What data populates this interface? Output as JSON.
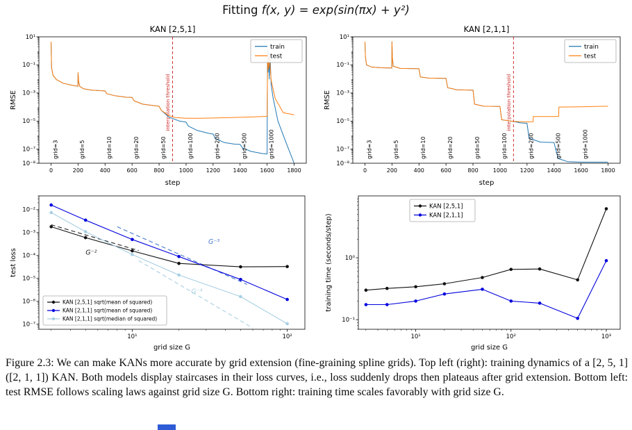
{
  "figure": {
    "title_prefix": "Fitting ",
    "title_math": "f(x, y) = exp(sin(πx) + y²)",
    "caption": "Figure 2.3: We can make KANs more accurate by grid extension (fine-graining spline grids). Top left (right): training dynamics of a [2, 5, 1] ([2, 1, 1]) KAN. Both models display staircases in their loss curves, i.e., loss suddenly drops then plateaus after grid extension. Bottom left: test RMSE follows scaling laws against grid size G. Bottom right: training time scales favorably with grid size G."
  },
  "artifact": {
    "color": "#2e5cd6"
  },
  "chart_data": [
    {
      "svg": "chart-top-left",
      "type": "line",
      "title": "KAN [2,5,1]",
      "xlabel": "step",
      "ylabel": "RMSE",
      "x_scale": "linear",
      "xlim": [
        -90,
        1890
      ],
      "ylim": [
        1e-08,
        10
      ],
      "xticks": [
        0,
        200,
        400,
        600,
        800,
        1000,
        1200,
        1400,
        1600,
        1800
      ],
      "ytick_exps": [
        1,
        -1,
        -3,
        -5,
        -7,
        -8
      ],
      "vline": {
        "x": 900,
        "label": "interpolation threshold",
        "color": "#cc2f2f"
      },
      "grid_labels": [
        {
          "x": 30,
          "label": "grid=3"
        },
        {
          "x": 230,
          "label": "grid=5"
        },
        {
          "x": 430,
          "label": "grid=10"
        },
        {
          "x": 630,
          "label": "grid=20"
        },
        {
          "x": 830,
          "label": "grid=50"
        },
        {
          "x": 1030,
          "label": "grid=100"
        },
        {
          "x": 1230,
          "label": "grid=200"
        },
        {
          "x": 1430,
          "label": "grid=500"
        },
        {
          "x": 1630,
          "label": "grid=1000"
        }
      ],
      "legend": {
        "x_off": -80,
        "y_off": 4,
        "w": 74,
        "font": 9,
        "entries": [
          {
            "label": "train",
            "color": "#1f77b4"
          },
          {
            "label": "test",
            "color": "#ff7f0e"
          }
        ]
      },
      "series": [
        {
          "name": "train",
          "color": "#1f77b4",
          "x": [
            0,
            4,
            15,
            40,
            90,
            160,
            199,
            200,
            204,
            212,
            240,
            300,
            399,
            400,
            412,
            470,
            560,
            599,
            600,
            615,
            680,
            780,
            799,
            800,
            815,
            870,
            950,
            999,
            1000,
            1015,
            1080,
            1160,
            1199,
            1200,
            1215,
            1280,
            1360,
            1399,
            1400,
            1420,
            1480,
            1560,
            1599,
            1600,
            1603,
            1607,
            1611,
            1616,
            1622,
            1630,
            1645,
            1680,
            1740,
            1800
          ],
          "y": [
            4.5,
            0.06,
            0.018,
            0.009,
            0.005,
            0.0035,
            0.003,
            0.028,
            0.007,
            0.003,
            0.002,
            0.0016,
            0.0014,
            0.0014,
            0.0009,
            0.00065,
            0.0005,
            0.00048,
            0.00048,
            0.00028,
            0.00016,
            0.00012,
            0.000115,
            0.000115,
            6e-05,
            2e-05,
            1e-05,
            8.5e-06,
            8.5e-06,
            4.5e-06,
            2.2e-06,
            1.4e-06,
            1.2e-06,
            1.2e-06,
            6e-07,
            3e-07,
            2.3e-07,
            2.2e-07,
            2.2e-07,
            1.2e-07,
            7e-08,
            5e-08,
            4.5e-08,
            4.5e-08,
            1.2,
            0.03,
            0.9,
            0.01,
            0.5,
            0.004,
            0.0004,
            1e-05,
            3e-07,
            1e-08
          ]
        },
        {
          "name": "test",
          "color": "#ff7f0e",
          "x": [
            0,
            4,
            15,
            40,
            90,
            160,
            199,
            200,
            204,
            212,
            240,
            300,
            399,
            400,
            412,
            470,
            560,
            599,
            600,
            615,
            680,
            780,
            799,
            800,
            815,
            870,
            920,
            1000,
            1100,
            1200,
            1300,
            1400,
            1500,
            1599,
            1600,
            1604,
            1610,
            1618,
            1630,
            1660,
            1720,
            1800
          ],
          "y": [
            4.5,
            0.06,
            0.018,
            0.009,
            0.005,
            0.0035,
            0.003,
            0.028,
            0.007,
            0.003,
            0.002,
            0.0016,
            0.0014,
            0.0014,
            0.0009,
            0.00065,
            0.0005,
            0.00048,
            0.00048,
            0.00028,
            0.00016,
            0.00012,
            0.000115,
            0.000115,
            6e-05,
            2.5e-05,
            1.8e-05,
            1.6e-05,
            1.6e-05,
            1.65e-05,
            1.75e-05,
            1.85e-05,
            2e-05,
            2.2e-05,
            2.2e-05,
            0.9,
            0.05,
            0.4,
            0.008,
            0.0004,
            4e-05,
            2.8e-05
          ]
        }
      ]
    },
    {
      "svg": "chart-top-right",
      "type": "line",
      "title": "KAN [2,1,1]",
      "xlabel": "step",
      "ylabel": "RMSE",
      "x_scale": "linear",
      "xlim": [
        -90,
        1890
      ],
      "ylim": [
        1e-08,
        10
      ],
      "xticks": [
        0,
        200,
        400,
        600,
        800,
        1000,
        1200,
        1400,
        1600,
        1800
      ],
      "ytick_exps": [
        1,
        -1,
        -3,
        -5,
        -7,
        -8
      ],
      "vline": {
        "x": 1100,
        "label": "interpolation threshold",
        "color": "#cc2f2f"
      },
      "grid_labels": [
        {
          "x": 30,
          "label": "grid=3"
        },
        {
          "x": 230,
          "label": "grid=5"
        },
        {
          "x": 430,
          "label": "grid=10"
        },
        {
          "x": 630,
          "label": "grid=20"
        },
        {
          "x": 830,
          "label": "grid=50"
        },
        {
          "x": 1030,
          "label": "grid=100"
        },
        {
          "x": 1230,
          "label": "grid=200"
        },
        {
          "x": 1430,
          "label": "grid=500"
        },
        {
          "x": 1630,
          "label": "grid=1000"
        }
      ],
      "legend": {
        "x_off": -80,
        "y_off": 4,
        "w": 74,
        "font": 9,
        "entries": [
          {
            "label": "train",
            "color": "#1f77b4"
          },
          {
            "label": "test",
            "color": "#ff7f0e"
          }
        ]
      },
      "series": [
        {
          "name": "train",
          "color": "#1f77b4",
          "x": [
            0,
            3,
            12,
            50,
            120,
            199,
            200,
            203,
            210,
            260,
            399,
            400,
            410,
            470,
            599,
            600,
            612,
            680,
            799,
            800,
            812,
            880,
            999,
            1000,
            1012,
            1099,
            1100,
            1150,
            1199,
            1200,
            1215,
            1300,
            1399,
            1400,
            1430,
            1500,
            1600,
            1700,
            1800
          ],
          "y": [
            4.5,
            0.4,
            0.1,
            0.07,
            0.063,
            0.06,
            4.5,
            0.3,
            0.08,
            0.057,
            0.054,
            0.054,
            0.014,
            0.0115,
            0.011,
            0.011,
            0.0024,
            0.0017,
            0.0016,
            0.0016,
            0.00016,
            0.000115,
            0.00011,
            0.00011,
            1.25e-05,
            9.5e-06,
            9.5e-06,
            7.5e-06,
            7e-06,
            7e-06,
            6e-07,
            3.2e-07,
            3e-07,
            3e-07,
            2.2e-08,
            1.3e-08,
            1.2e-08,
            1.2e-08,
            1.2e-08
          ]
        },
        {
          "name": "test",
          "color": "#ff7f0e",
          "x": [
            0,
            3,
            12,
            50,
            120,
            199,
            200,
            203,
            210,
            260,
            399,
            400,
            410,
            470,
            599,
            600,
            612,
            680,
            799,
            800,
            812,
            880,
            999,
            1000,
            1012,
            1099,
            1100,
            1199,
            1200,
            1245,
            1246,
            1399,
            1400,
            1435,
            1436,
            1599,
            1600,
            1700,
            1800
          ],
          "y": [
            4.5,
            0.4,
            0.1,
            0.07,
            0.063,
            0.06,
            4.5,
            0.3,
            0.08,
            0.057,
            0.054,
            0.054,
            0.014,
            0.0115,
            0.011,
            0.011,
            0.0024,
            0.0017,
            0.0016,
            0.0016,
            0.00016,
            0.000115,
            0.00011,
            0.00011,
            1.25e-05,
            9.5e-06,
            9.5e-06,
            8.8e-06,
            8.8e-06,
            9e-06,
            2.1e-05,
            2.1e-05,
            2.1e-05,
            2.2e-05,
            0.0001,
            0.000105,
            0.000105,
            0.00011,
            0.000115
          ]
        }
      ]
    },
    {
      "svg": "chart-bottom-left",
      "type": "line",
      "title": "",
      "xlabel": "grid size G",
      "ylabel": "test loss",
      "x_scale": "log",
      "xlim": [
        2.5,
        130
      ],
      "ylim": [
        6e-08,
        0.04
      ],
      "xtick_exps": [
        1,
        2
      ],
      "ytick_exps": [
        -2,
        -3,
        -4,
        -5,
        -6,
        -7
      ],
      "ref_lines": [
        {
          "x": [
            3,
            11
          ],
          "y": [
            0.0022,
            0.000164
          ],
          "color": "#222222",
          "label": "G⁻²",
          "label_x": 5.0,
          "label_y": 0.00011
        },
        {
          "x": [
            8,
            55
          ],
          "y": [
            0.0018,
            5.5e-06
          ],
          "color": "#4477cc",
          "label": "G⁻³",
          "label_x": 31,
          "label_y": 0.00032
        },
        {
          "x": [
            11,
            60
          ],
          "y": [
            6e-05,
            6.8e-08
          ],
          "color": "#a8cfe3",
          "label": "G⁻⁴",
          "label_x": 24,
          "label_y": 2.2e-06
        }
      ],
      "legend": {
        "x_off": 6,
        "y_off": -6,
        "w": 178,
        "font": 7.5,
        "entries": [
          {
            "label": "KAN [2,5,1] sqrt(mean of squared)",
            "color": "#111111",
            "marker": true
          },
          {
            "label": "KAN [2,1,1] sqrt(mean of squared)",
            "color": "#0000dd",
            "marker": true
          },
          {
            "label": "KAN [2,1,1] sqrt(median of squared)",
            "color": "#a8cfe3",
            "marker": true
          }
        ]
      },
      "series": [
        {
          "name": "KAN [2,5,1] sqrt(mean of squared)",
          "color": "#111111",
          "marker": true,
          "x": [
            3,
            5,
            10,
            20,
            50,
            100
          ],
          "y": [
            0.0018,
            0.0006,
            0.00016,
            4.5e-05,
            3.2e-05,
            3.3e-05
          ]
        },
        {
          "name": "KAN [2,1,1] sqrt(mean of squared)",
          "color": "#0000dd",
          "marker": true,
          "x": [
            3,
            5,
            10,
            20,
            50,
            100
          ],
          "y": [
            0.016,
            0.0035,
            0.0005,
            9e-05,
            9e-06,
            1.2e-06
          ]
        },
        {
          "name": "KAN [2,1,1] sqrt(median of squared)",
          "color": "#a8cfe3",
          "marker": true,
          "x": [
            3,
            5,
            10,
            20,
            50,
            100
          ],
          "y": [
            0.0075,
            0.0011,
            0.00011,
            1.4e-05,
            1.6e-06,
            1.05e-07
          ]
        }
      ]
    },
    {
      "svg": "chart-bottom-right",
      "type": "line",
      "title": "",
      "xlabel": "grid size G",
      "ylabel": "training time (seconds/step)",
      "x_scale": "log",
      "xlim": [
        2.5,
        1400
      ],
      "ylim": [
        0.07,
        10
      ],
      "xtick_exps": [
        1,
        2,
        3
      ],
      "ytick_exps": [
        -1,
        0
      ],
      "legend": {
        "x_off": 74,
        "y_off": 5,
        "w": 94,
        "font": 8.5,
        "entries": [
          {
            "label": "KAN [2,5,1]",
            "color": "#111111",
            "marker": true
          },
          {
            "label": "KAN [2,1,1]",
            "color": "#0000dd",
            "marker": true
          }
        ]
      },
      "series": [
        {
          "name": "KAN [2,5,1]",
          "color": "#111111",
          "marker": true,
          "x": [
            3,
            5,
            10,
            20,
            50,
            100,
            200,
            500,
            1000
          ],
          "y": [
            0.3,
            0.32,
            0.34,
            0.38,
            0.48,
            0.65,
            0.66,
            0.44,
            6.2
          ]
        },
        {
          "name": "KAN [2,1,1]",
          "color": "#0000dd",
          "marker": true,
          "x": [
            3,
            5,
            10,
            20,
            50,
            100,
            200,
            500,
            1000
          ],
          "y": [
            0.175,
            0.175,
            0.2,
            0.26,
            0.31,
            0.2,
            0.185,
            0.105,
            0.9
          ]
        }
      ]
    }
  ]
}
